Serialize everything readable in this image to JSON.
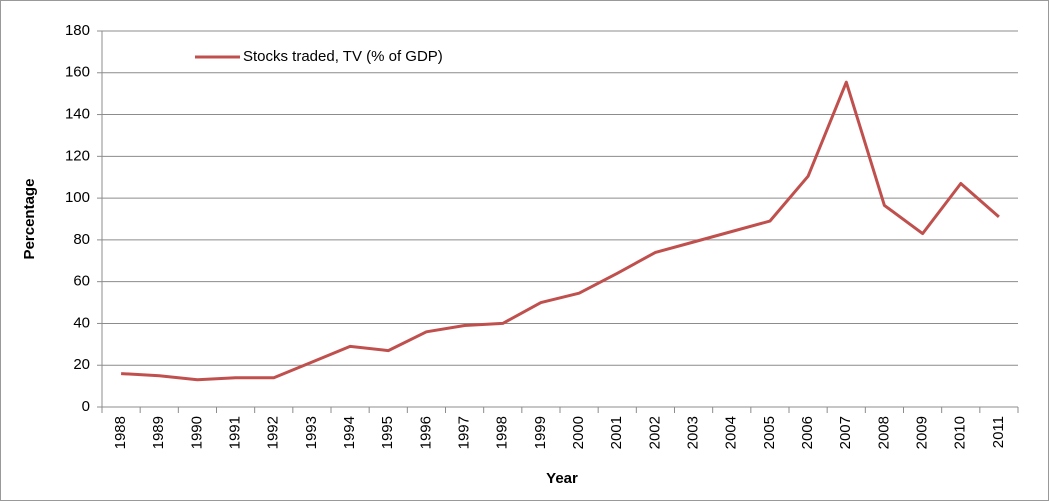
{
  "chart_data": {
    "type": "line",
    "x_label": "Year",
    "y_label": "Percentage",
    "categories": [
      "1988",
      "1989",
      "1990",
      "1991",
      "1992",
      "1993",
      "1994",
      "1995",
      "1996",
      "1997",
      "1998",
      "1999",
      "2000",
      "2001",
      "2002",
      "2003",
      "2004",
      "2005",
      "2006",
      "2007",
      "2008",
      "2009",
      "2010",
      "2011"
    ],
    "series": [
      {
        "name": "Stocks traded, TV (% of GDP)",
        "color": "#c0504d",
        "values": [
          16,
          15,
          13,
          14,
          14,
          21.5,
          29,
          27,
          36,
          39,
          40,
          50,
          54.5,
          64,
          74,
          79,
          84,
          89,
          110.5,
          155.5,
          96.5,
          83,
          107,
          91
        ]
      }
    ],
    "ylim": [
      0,
      180
    ],
    "yticks": [
      0,
      20,
      40,
      60,
      80,
      100,
      120,
      140,
      160,
      180
    ],
    "grid": true,
    "legend": "top-left"
  }
}
